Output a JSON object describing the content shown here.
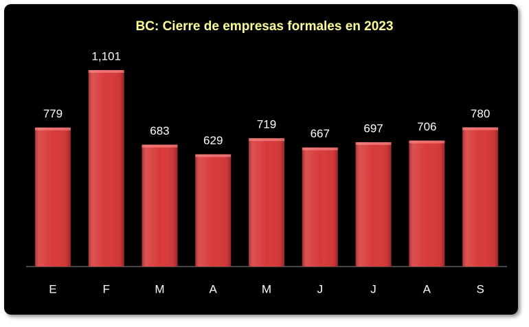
{
  "chart_data": {
    "type": "bar",
    "title": "BC: Cierre de empresas formales en 2023",
    "categories": [
      "E",
      "F",
      "M",
      "A",
      "M",
      "J",
      "J",
      "A",
      "S"
    ],
    "values": [
      779,
      1101,
      683,
      629,
      719,
      667,
      697,
      706,
      780
    ],
    "value_labels": [
      "779",
      "1,101",
      "683",
      "629",
      "719",
      "667",
      "697",
      "706",
      "780"
    ],
    "color": "#d83a3a"
  }
}
